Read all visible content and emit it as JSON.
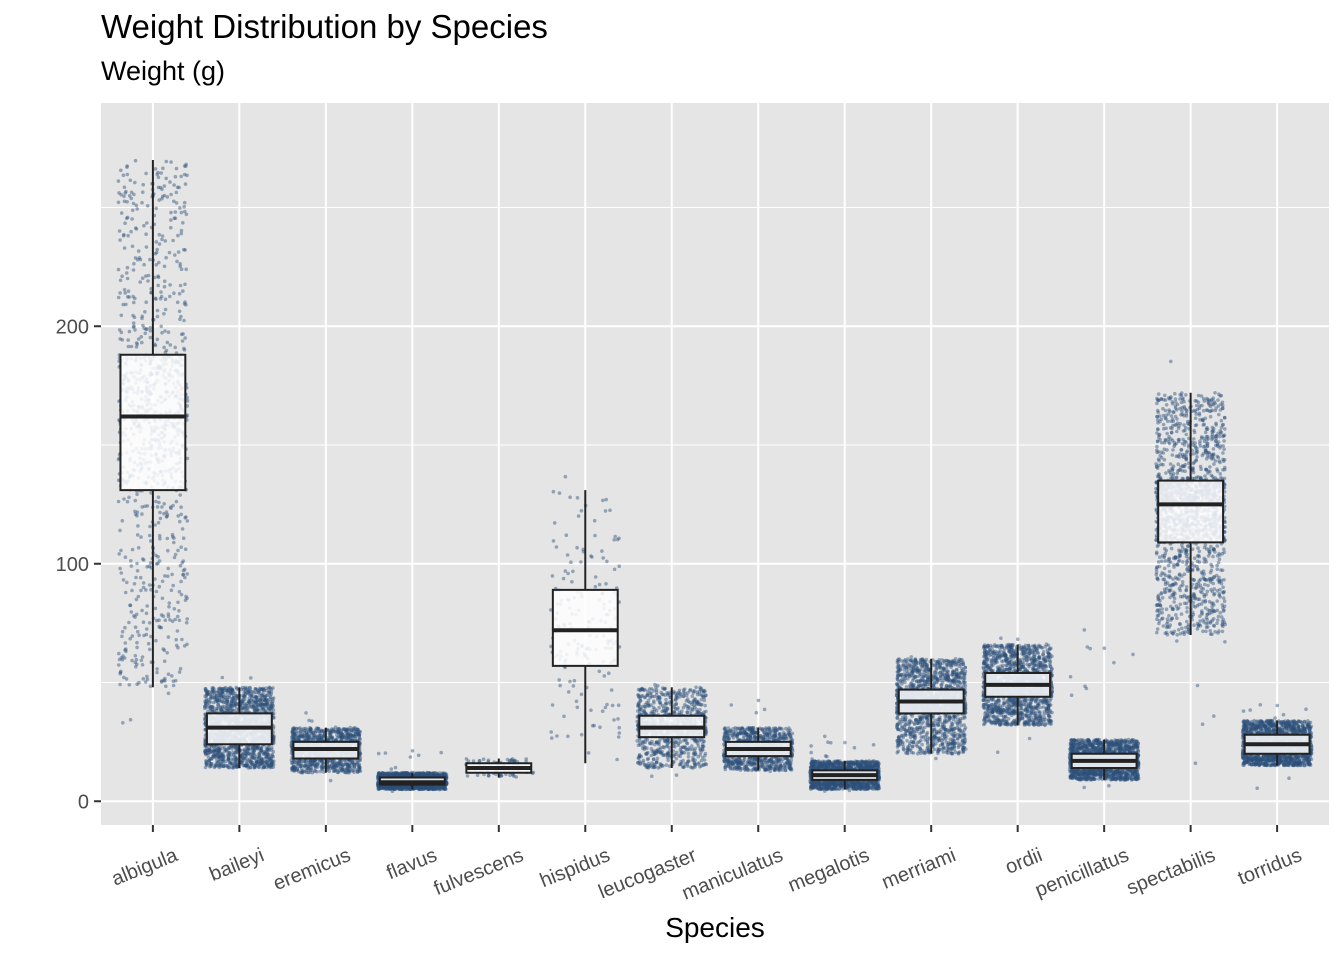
{
  "chart_data": {
    "type": "box",
    "title": "Weight Distribution by Species",
    "subtitle": "Weight (g)",
    "xlabel": "Species",
    "ylabel": "",
    "ylim": [
      -10,
      294
    ],
    "yticks": [
      0,
      100,
      200
    ],
    "grid": true,
    "point_color": "#2c5079",
    "background": "#e5e5e5",
    "categories": [
      "albigula",
      "baileyi",
      "eremicus",
      "flavus",
      "fulvescens",
      "hispidus",
      "leucogaster",
      "maniculatus",
      "megalotis",
      "merriami",
      "ordii",
      "penicillatus",
      "spectabilis",
      "torridus"
    ],
    "series": [
      {
        "whisker_low": 48,
        "q1": 131,
        "median": 162,
        "q3": 188,
        "whisker_high": 270,
        "y_min": 30,
        "y_max": 280,
        "n": 1000
      },
      {
        "whisker_low": 14,
        "q1": 24,
        "median": 31,
        "q3": 37,
        "whisker_high": 48,
        "y_min": 12,
        "y_max": 55,
        "n": 2800
      },
      {
        "whisker_low": 12,
        "q1": 18,
        "median": 22,
        "q3": 25,
        "whisker_high": 31,
        "y_min": 8,
        "y_max": 38,
        "n": 1200
      },
      {
        "whisker_low": 5,
        "q1": 7,
        "median": 8,
        "q3": 10,
        "whisker_high": 12,
        "y_min": 4,
        "y_max": 24,
        "n": 1500
      },
      {
        "whisker_low": 10,
        "q1": 12,
        "median": 14,
        "q3": 16,
        "whisker_high": 18,
        "y_min": 9,
        "y_max": 19,
        "n": 80
      },
      {
        "whisker_low": 16,
        "q1": 57,
        "median": 72,
        "q3": 89,
        "whisker_high": 131,
        "y_min": 16,
        "y_max": 140,
        "n": 180
      },
      {
        "whisker_low": 14,
        "q1": 27,
        "median": 31,
        "q3": 36,
        "whisker_high": 48,
        "y_min": 10,
        "y_max": 55,
        "n": 1000
      },
      {
        "whisker_low": 13,
        "q1": 19,
        "median": 22,
        "q3": 25,
        "whisker_high": 31,
        "y_min": 8,
        "y_max": 48,
        "n": 1100
      },
      {
        "whisker_low": 5,
        "q1": 9,
        "median": 11,
        "q3": 13,
        "whisker_high": 17,
        "y_min": 4,
        "y_max": 28,
        "n": 2500
      },
      {
        "whisker_low": 20,
        "q1": 37,
        "median": 42,
        "q3": 47,
        "whisker_high": 60,
        "y_min": 17,
        "y_max": 62,
        "n": 10000
      },
      {
        "whisker_low": 32,
        "q1": 44,
        "median": 49,
        "q3": 54,
        "whisker_high": 66,
        "y_min": 20,
        "y_max": 76,
        "n": 3000
      },
      {
        "whisker_low": 9,
        "q1": 14,
        "median": 17,
        "q3": 20,
        "whisker_high": 26,
        "y_min": 5,
        "y_max": 74,
        "n": 2800
      },
      {
        "whisker_low": 70,
        "q1": 109,
        "median": 125,
        "q3": 135,
        "whisker_high": 172,
        "y_min": 12,
        "y_max": 190,
        "n": 3500
      },
      {
        "whisker_low": 15,
        "q1": 20,
        "median": 24,
        "q3": 28,
        "whisker_high": 34,
        "y_min": 5,
        "y_max": 46,
        "n": 1800
      }
    ]
  }
}
